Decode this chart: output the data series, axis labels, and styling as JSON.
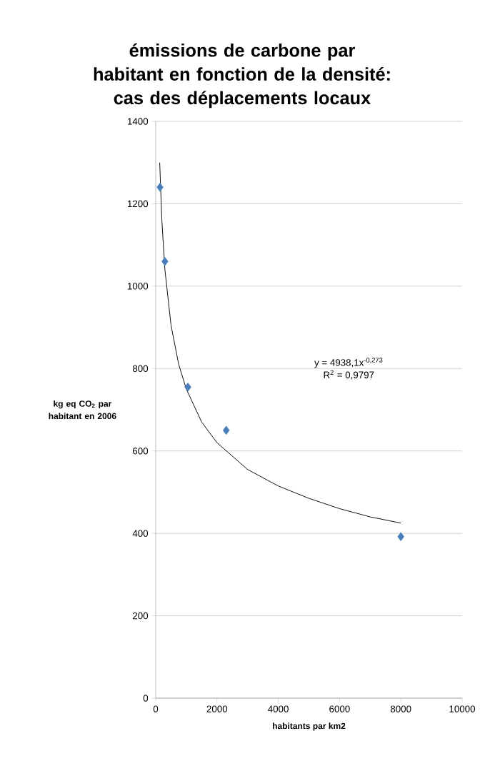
{
  "chart_data": {
    "type": "scatter",
    "title": "émissions de carbone par habitant en fonction de la densité: cas des déplacements locaux",
    "xlabel": "habitants par km2",
    "ylabel": "kg eq CO$_{2}$ par habitant en 2006",
    "xlim": [
      0,
      10000
    ],
    "ylim": [
      0,
      1400
    ],
    "xticks": [
      0,
      2000,
      4000,
      6000,
      8000,
      10000
    ],
    "yticks": [
      0,
      200,
      400,
      600,
      800,
      1000,
      1200,
      1400
    ],
    "grid": "y",
    "series": [
      {
        "marker": "diamond",
        "color": "#4a7ebb",
        "x": [
          140,
          300,
          1050,
          2300,
          8000
        ],
        "values": [
          1240,
          1060,
          755,
          650,
          392
        ]
      },
      {
        "type": "line",
        "marker": "none",
        "color": "#000000",
        "x": [
          130,
          200,
          300,
          500,
          750,
          1000,
          1500,
          2000,
          3000,
          4000,
          5000,
          6000,
          7000,
          8000
        ],
        "values": [
          1300,
          1160,
          1040,
          905,
          810,
          750,
          670,
          620,
          555,
          515,
          485,
          460,
          440,
          425
        ]
      }
    ],
    "annotations": [
      "y = 4938,1x$^{-0,273}$",
      "R$^{2}$ = 0,9797"
    ]
  }
}
